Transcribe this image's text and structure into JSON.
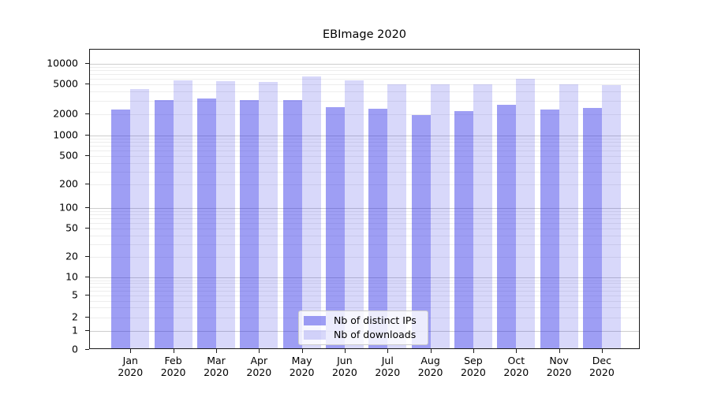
{
  "chart_data": {
    "type": "bar",
    "title": "EBImage 2020",
    "categories": [
      "Jan",
      "Feb",
      "Mar",
      "Apr",
      "May",
      "Jun",
      "Jul",
      "Aug",
      "Sep",
      "Oct",
      "Nov",
      "Dec"
    ],
    "x_tick_second_line": "2020",
    "series": [
      {
        "name": "Nb of distinct IPs",
        "color": "rgba(40,40,230,0.45)",
        "values": [
          2300,
          3050,
          3250,
          3100,
          3050,
          2500,
          2350,
          1930,
          2200,
          2650,
          2300,
          2400
        ]
      },
      {
        "name": "Nb of downloads",
        "color": "rgba(40,40,230,0.18)",
        "values": [
          4300,
          5600,
          5500,
          5300,
          6500,
          5700,
          4950,
          4900,
          4900,
          6000,
          4900,
          4800
        ]
      }
    ],
    "yscale": "symlog",
    "ylim": [
      0,
      15600
    ],
    "y_ticks": [
      0,
      1,
      2,
      5,
      10,
      20,
      50,
      100,
      200,
      500,
      1000,
      2000,
      5000,
      10000
    ],
    "grid": {
      "major": true,
      "minor": true
    },
    "legend": {
      "position": "lower center",
      "entries": [
        "Nb of distinct IPs",
        "Nb of downloads"
      ]
    }
  }
}
